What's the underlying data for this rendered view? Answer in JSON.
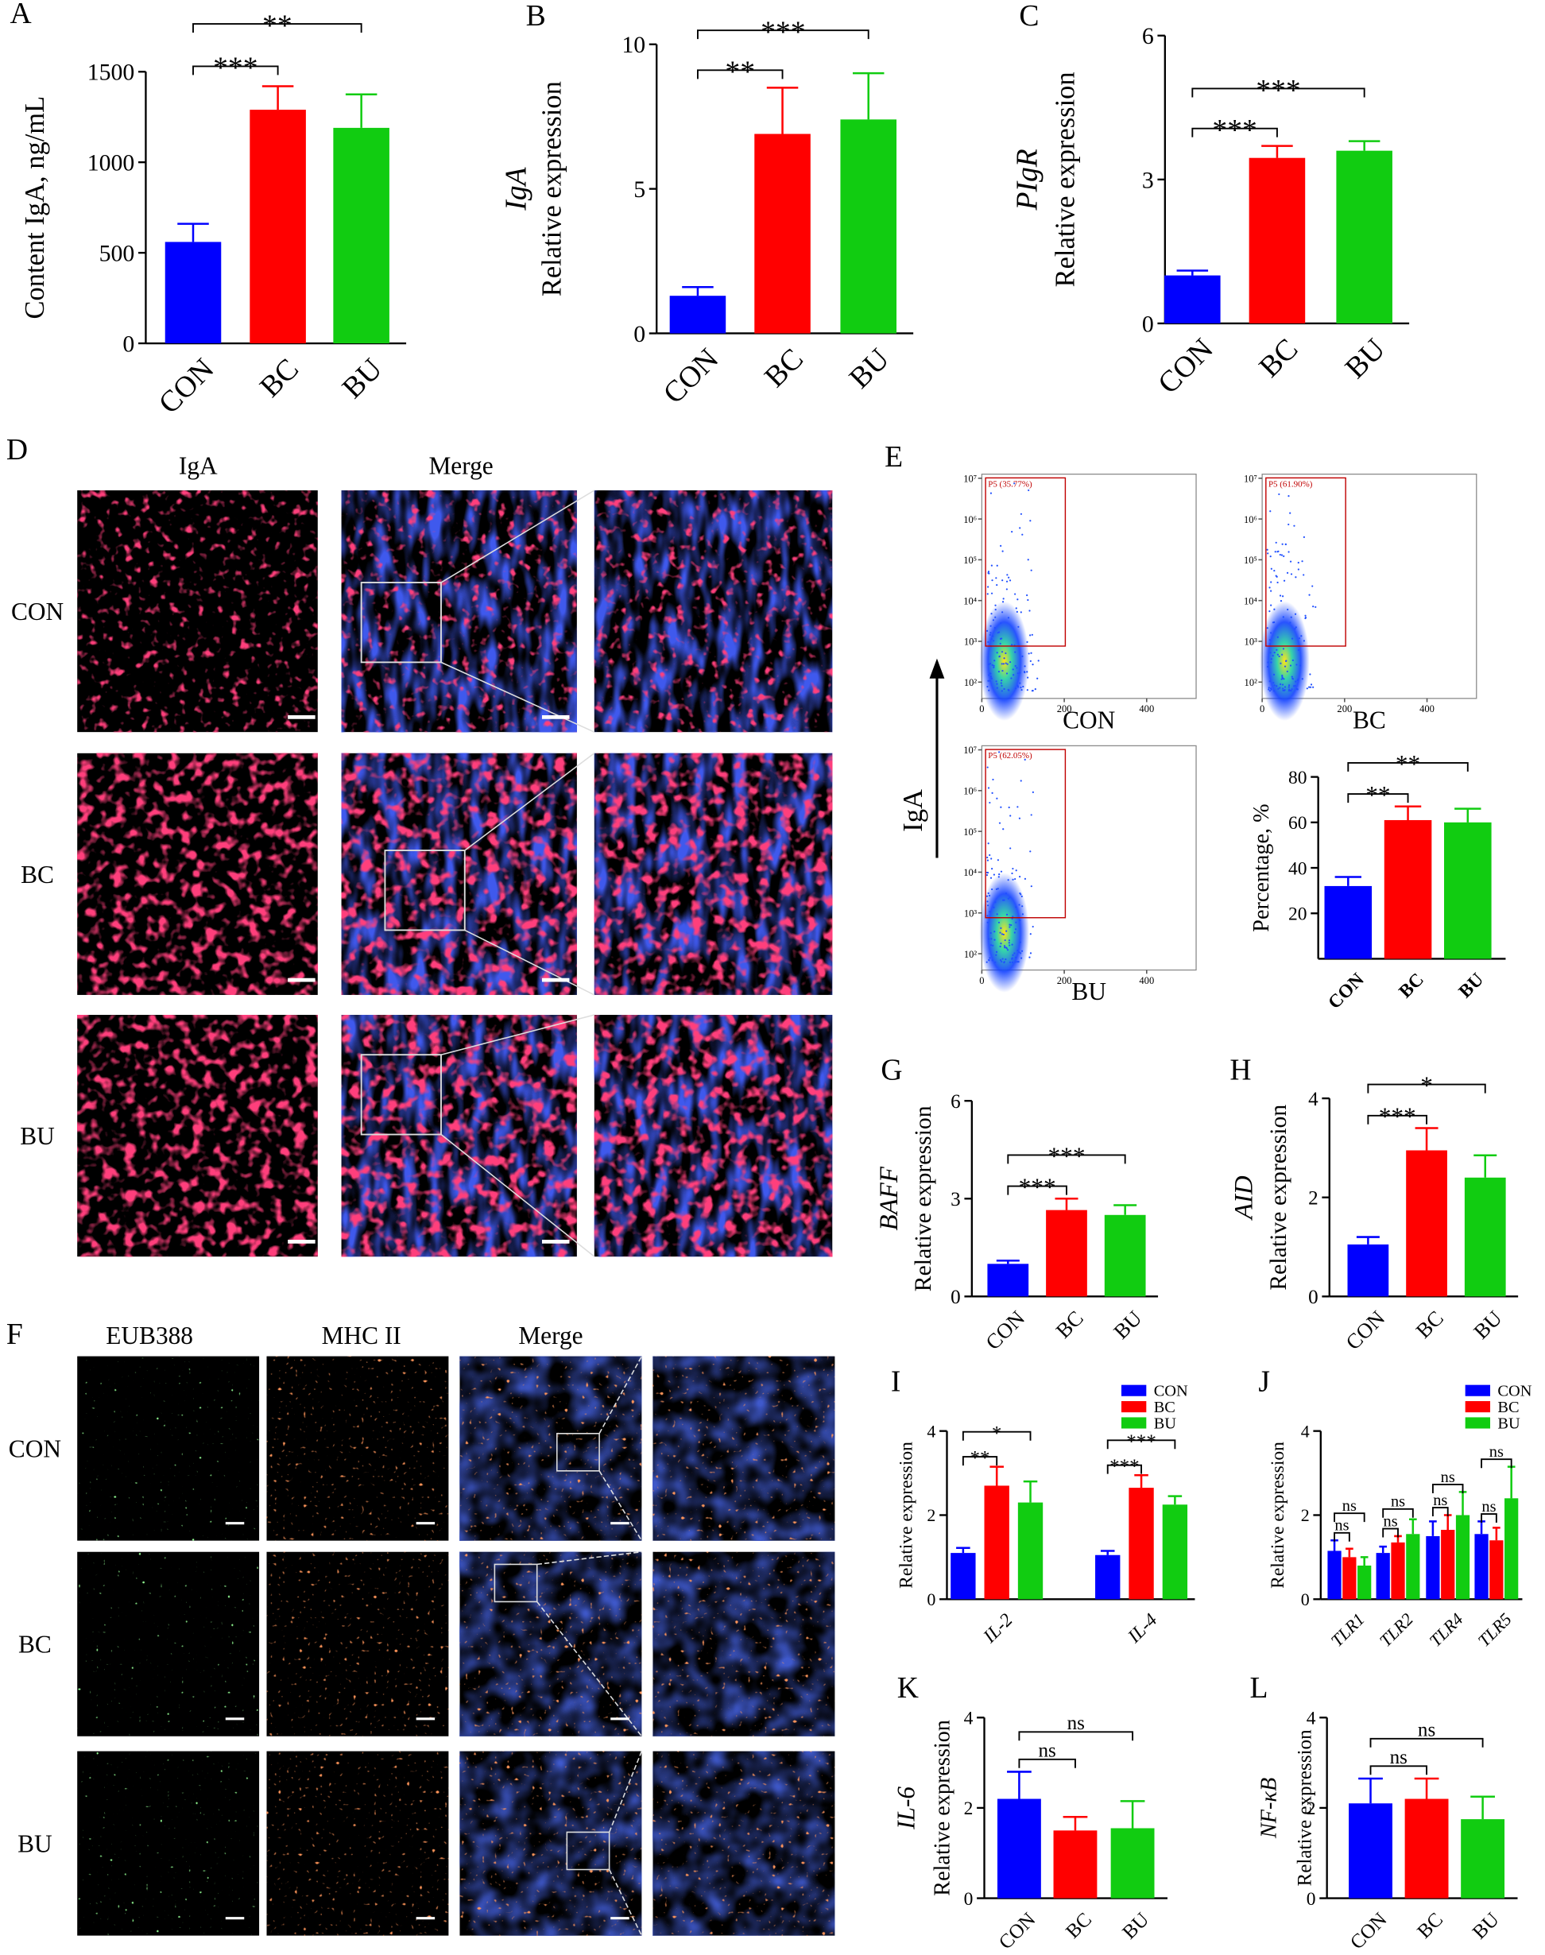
{
  "chart_data": [
    {
      "type": "bar",
      "panel": "A",
      "ylabel": "Content IgA, ng/mL",
      "categories": [
        "CON",
        "BC",
        "BU"
      ],
      "values": [
        560,
        1290,
        1190
      ],
      "errors": [
        100,
        130,
        185
      ],
      "colors": [
        "#0000ff",
        "#ff0000",
        "#11cc11"
      ],
      "ylim": [
        0,
        1500
      ],
      "yticks": [
        0,
        500,
        1000,
        1500
      ],
      "comparisons": [
        {
          "pair": [
            0,
            1
          ],
          "label": "***"
        },
        {
          "pair": [
            0,
            2
          ],
          "label": "**"
        }
      ]
    },
    {
      "type": "bar",
      "panel": "B",
      "gene": "IgA",
      "ylabel": "Relative expression",
      "categories": [
        "CON",
        "BC",
        "BU"
      ],
      "values": [
        1.3,
        6.9,
        7.4
      ],
      "errors": [
        0.3,
        1.6,
        1.6
      ],
      "colors": [
        "#0000ff",
        "#ff0000",
        "#11cc11"
      ],
      "ylim": [
        0,
        10
      ],
      "yticks": [
        0,
        5,
        10
      ],
      "comparisons": [
        {
          "pair": [
            0,
            1
          ],
          "label": "**"
        },
        {
          "pair": [
            0,
            2
          ],
          "label": "***"
        }
      ]
    },
    {
      "type": "bar",
      "panel": "C",
      "gene": "PIgR",
      "ylabel": "Relative expression",
      "categories": [
        "CON",
        "BC",
        "BU"
      ],
      "values": [
        1.0,
        3.45,
        3.6
      ],
      "errors": [
        0.1,
        0.25,
        0.2
      ],
      "colors": [
        "#0000ff",
        "#ff0000",
        "#11cc11"
      ],
      "ylim": [
        0,
        6
      ],
      "yticks": [
        0,
        3,
        6
      ],
      "comparisons": [
        {
          "pair": [
            0,
            1
          ],
          "label": "***"
        },
        {
          "pair": [
            0,
            2
          ],
          "label": "***"
        }
      ]
    },
    {
      "type": "bar",
      "ylabel": "Percentage, %",
      "categories": [
        "CON",
        "BC",
        "BU"
      ],
      "values": [
        32,
        61,
        60
      ],
      "errors": [
        4,
        6,
        6
      ],
      "colors": [
        "#0000ff",
        "#ff0000",
        "#11cc11"
      ],
      "ylim": [
        0,
        80
      ],
      "yticks": [
        20,
        40,
        60,
        80
      ],
      "comparisons": [
        {
          "pair": [
            0,
            1
          ],
          "label": "**"
        },
        {
          "pair": [
            0,
            2
          ],
          "label": "**"
        }
      ]
    },
    {
      "type": "bar",
      "panel": "G",
      "gene": "BAFF",
      "ylabel": "Relative expression",
      "categories": [
        "CON",
        "BC",
        "BU"
      ],
      "values": [
        1.0,
        2.65,
        2.5
      ],
      "errors": [
        0.1,
        0.35,
        0.3
      ],
      "colors": [
        "#0000ff",
        "#ff0000",
        "#11cc11"
      ],
      "ylim": [
        0,
        6
      ],
      "yticks": [
        0,
        3,
        6
      ],
      "comparisons": [
        {
          "pair": [
            0,
            1
          ],
          "label": "***"
        },
        {
          "pair": [
            0,
            2
          ],
          "label": "***"
        }
      ]
    },
    {
      "type": "bar",
      "panel": "H",
      "gene": "AID",
      "ylabel": "Relative expression",
      "categories": [
        "CON",
        "BC",
        "BU"
      ],
      "values": [
        1.05,
        2.95,
        2.4
      ],
      "errors": [
        0.15,
        0.45,
        0.45
      ],
      "colors": [
        "#0000ff",
        "#ff0000",
        "#11cc11"
      ],
      "ylim": [
        0,
        4
      ],
      "yticks": [
        0,
        2,
        4
      ],
      "comparisons": [
        {
          "pair": [
            0,
            1
          ],
          "label": "***"
        },
        {
          "pair": [
            0,
            2
          ],
          "label": "*"
        }
      ]
    },
    {
      "type": "grouped_bar",
      "panel": "I",
      "ylabel": "Relative expression",
      "categories": [
        "IL-2",
        "IL-4"
      ],
      "series": [
        {
          "name": "CON",
          "color": "#0000ff",
          "values": [
            1.1,
            1.05
          ],
          "errors": [
            0.12,
            0.1
          ]
        },
        {
          "name": "BC",
          "color": "#ff0000",
          "values": [
            2.7,
            2.65
          ],
          "errors": [
            0.45,
            0.3
          ]
        },
        {
          "name": "BU",
          "color": "#11cc11",
          "values": [
            2.3,
            2.25
          ],
          "errors": [
            0.5,
            0.2
          ]
        }
      ],
      "ylim": [
        0,
        4
      ],
      "yticks": [
        0,
        2,
        4
      ],
      "legend": "top-right",
      "comparisons": [
        {
          "category": 0,
          "pair": [
            0,
            1
          ],
          "label": "**"
        },
        {
          "category": 0,
          "pair": [
            0,
            2
          ],
          "label": "*"
        },
        {
          "category": 1,
          "pair": [
            0,
            1
          ],
          "label": "***"
        },
        {
          "category": 1,
          "pair": [
            0,
            2
          ],
          "label": "***"
        }
      ]
    },
    {
      "type": "grouped_bar",
      "panel": "J",
      "ylabel": "Relative expression",
      "categories": [
        "TLR1",
        "TLR2",
        "TLR4",
        "TLR5"
      ],
      "series": [
        {
          "name": "CON",
          "color": "#0000ff",
          "values": [
            1.15,
            1.1,
            1.5,
            1.55
          ],
          "errors": [
            0.25,
            0.15,
            0.35,
            0.3
          ]
        },
        {
          "name": "BC",
          "color": "#ff0000",
          "values": [
            1.0,
            1.35,
            1.65,
            1.4
          ],
          "errors": [
            0.2,
            0.15,
            0.35,
            0.3
          ]
        },
        {
          "name": "BU",
          "color": "#11cc11",
          "values": [
            0.8,
            1.55,
            2.0,
            2.4
          ],
          "errors": [
            0.2,
            0.35,
            0.55,
            0.75
          ]
        }
      ],
      "ylim": [
        0,
        4
      ],
      "yticks": [
        0,
        2,
        4
      ],
      "legend": "top-right",
      "comparisons": [
        {
          "category": 0,
          "pair": [
            0,
            1
          ],
          "label": "ns"
        },
        {
          "category": 0,
          "pair": [
            0,
            2
          ],
          "label": "ns"
        },
        {
          "category": 1,
          "pair": [
            0,
            1
          ],
          "label": "ns"
        },
        {
          "category": 1,
          "pair": [
            0,
            2
          ],
          "label": "ns"
        },
        {
          "category": 2,
          "pair": [
            0,
            1
          ],
          "label": "ns"
        },
        {
          "category": 2,
          "pair": [
            0,
            2
          ],
          "label": "ns"
        },
        {
          "category": 3,
          "pair": [
            0,
            1
          ],
          "label": "ns"
        },
        {
          "category": 3,
          "pair": [
            0,
            2
          ],
          "label": "ns"
        }
      ]
    },
    {
      "type": "bar",
      "panel": "K",
      "gene": "IL-6",
      "ylabel": "Relative expression",
      "categories": [
        "CON",
        "BC",
        "BU"
      ],
      "values": [
        2.2,
        1.5,
        1.55
      ],
      "errors": [
        0.6,
        0.3,
        0.6
      ],
      "colors": [
        "#0000ff",
        "#ff0000",
        "#11cc11"
      ],
      "ylim": [
        0,
        4
      ],
      "yticks": [
        0,
        2,
        4
      ],
      "comparisons": [
        {
          "pair": [
            0,
            1
          ],
          "label": "ns"
        },
        {
          "pair": [
            0,
            2
          ],
          "label": "ns"
        }
      ]
    },
    {
      "type": "bar",
      "panel": "L",
      "gene": "NF-κB",
      "ylabel": "Relative expression",
      "categories": [
        "CON",
        "BC",
        "BU"
      ],
      "values": [
        2.1,
        2.2,
        1.75
      ],
      "errors": [
        0.55,
        0.45,
        0.5
      ],
      "colors": [
        "#0000ff",
        "#ff0000",
        "#11cc11"
      ],
      "ylim": [
        0,
        4
      ],
      "yticks": [
        0,
        2,
        4
      ],
      "comparisons": [
        {
          "pair": [
            0,
            1
          ],
          "label": "ns"
        },
        {
          "pair": [
            0,
            2
          ],
          "label": "ns"
        }
      ]
    }
  ],
  "image_panels": [
    {
      "label": "D",
      "columns": [
        "IgA",
        "Merge"
      ],
      "rows": [
        "CON",
        "BC",
        "BU"
      ]
    },
    {
      "label": "F",
      "columns": [
        "EUB388",
        "MHC II",
        "Merge"
      ],
      "rows": [
        "CON",
        "BC",
        "BU"
      ]
    }
  ],
  "flow_panel": {
    "label": "E",
    "y_label": "IgA",
    "xlim": [
      0,
      520
    ],
    "ylim": [
      1.6,
      7.1
    ],
    "xticks": [
      0,
      200,
      400
    ],
    "yticks": [
      {
        "value": 2,
        "label": "10²"
      },
      {
        "value": 3,
        "label": "10³"
      },
      {
        "value": 4,
        "label": "10⁴"
      },
      {
        "value": 5,
        "label": "10⁵"
      },
      {
        "value": 6,
        "label": "10⁶"
      },
      {
        "value": 7,
        "label": "10⁷"
      }
    ],
    "plots": [
      {
        "name": "CON",
        "gate": "P5 (35.77%)"
      },
      {
        "name": "BC",
        "gate": "P5 (61.90%)"
      },
      {
        "name": "BU",
        "gate": "P5 (62.05%)"
      }
    ]
  }
}
